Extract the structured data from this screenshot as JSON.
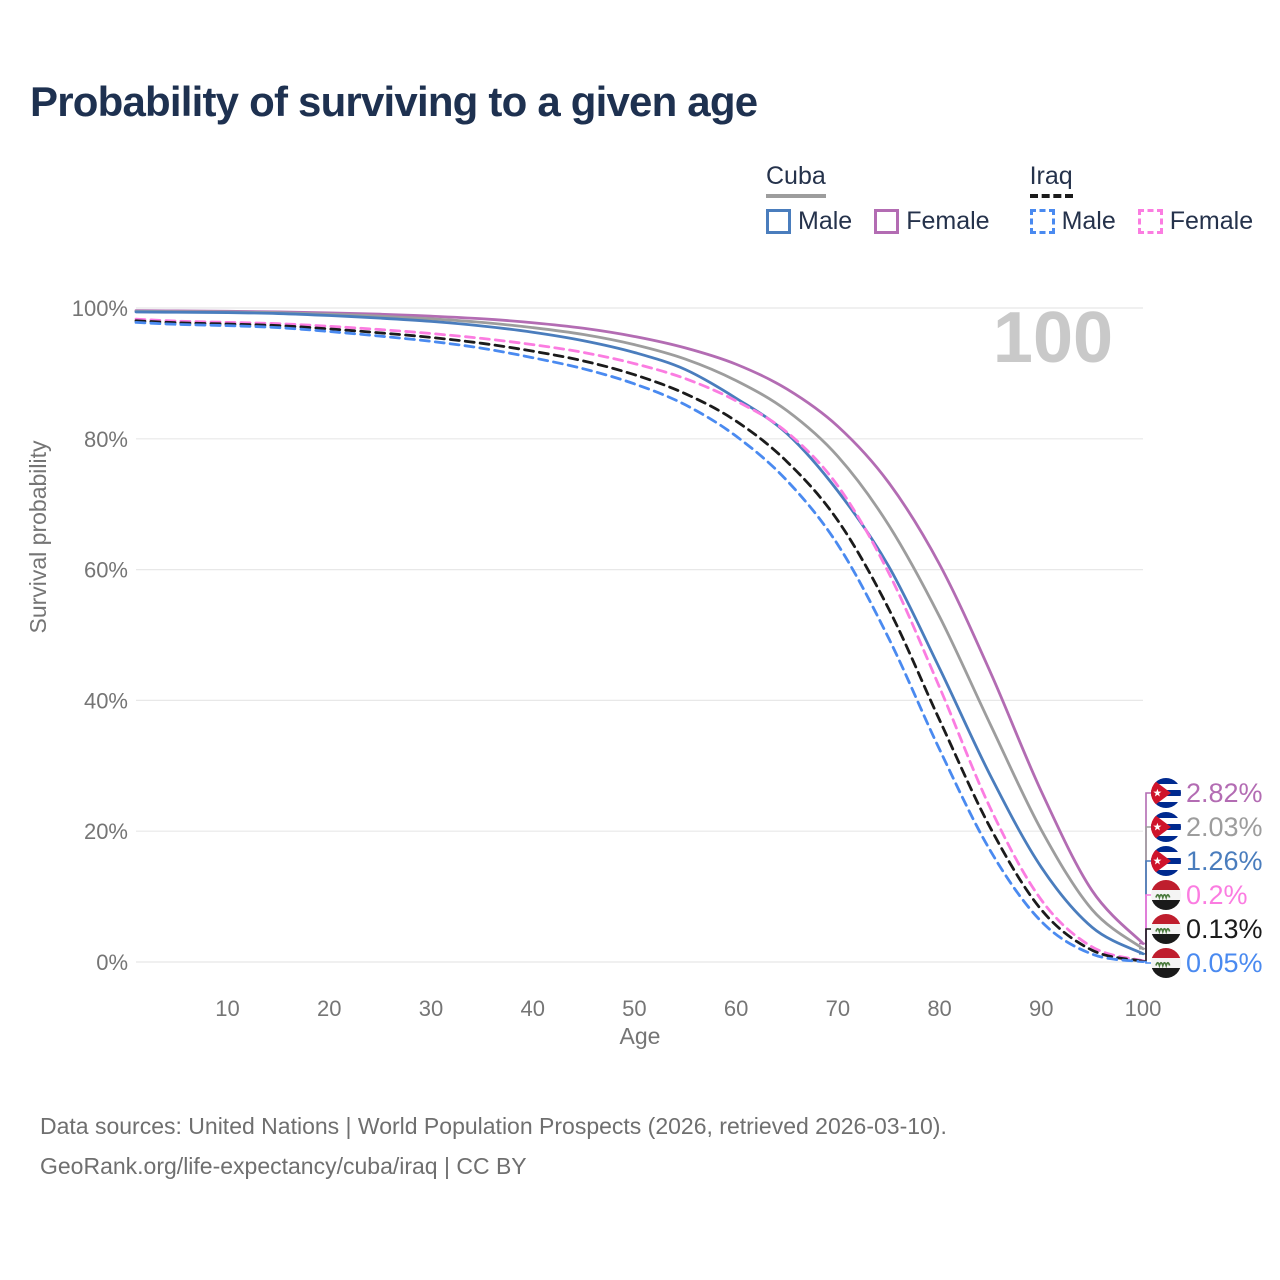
{
  "title": "Probability of surviving to a given age",
  "legend": {
    "cuba": {
      "label": "Cuba",
      "male": "Male",
      "female": "Female"
    },
    "iraq": {
      "label": "Iraq",
      "male": "Male",
      "female": "Female"
    }
  },
  "chart_data": {
    "type": "line",
    "title": "Probability of surviving to a given age",
    "xlabel": "Age",
    "ylabel": "Survival probability",
    "annotation": "100",
    "grid": "horizontal only",
    "legend_position": "top-right",
    "xlim": [
      1,
      100
    ],
    "ylim": [
      0,
      100
    ],
    "x_ticks": [
      10,
      20,
      30,
      40,
      50,
      60,
      70,
      80,
      90,
      100
    ],
    "x_tick_labels": [
      "10",
      "20",
      "30",
      "40",
      "50",
      "60",
      "70",
      "80",
      "90",
      "100"
    ],
    "y_ticks": [
      100,
      80,
      60,
      40,
      20,
      0
    ],
    "y_tick_labels": [
      "100%",
      "80%",
      "60%",
      "40%",
      "20%",
      "0%"
    ],
    "ages": [
      1,
      5,
      10,
      15,
      20,
      25,
      30,
      35,
      40,
      45,
      50,
      55,
      60,
      65,
      70,
      75,
      80,
      85,
      90,
      95,
      100
    ],
    "series": [
      {
        "key": "cuba-female",
        "name": "Cuba Female",
        "country": "Cuba",
        "sex": "Female",
        "flag": "cuba",
        "style": "solid",
        "color": "#b36cb3",
        "end_label": "2.82%",
        "values": [
          99.6,
          99.55,
          99.5,
          99.4,
          99.25,
          99.05,
          98.75,
          98.35,
          97.75,
          96.9,
          95.65,
          93.9,
          91.4,
          87.6,
          81.9,
          73.3,
          60.8,
          44.3,
          26.1,
          10.9,
          2.82
        ]
      },
      {
        "key": "cuba",
        "name": "Cuba",
        "country": "Cuba",
        "sex": "",
        "flag": "cuba",
        "style": "solid",
        "color": "#9d9d9d",
        "end_label": "2.03%",
        "values": [
          99.5,
          99.45,
          99.4,
          99.28,
          99.05,
          98.75,
          98.35,
          97.8,
          97.0,
          95.95,
          94.4,
          92.2,
          88.9,
          84.3,
          77.3,
          66.8,
          52.8,
          36.3,
          20.2,
          8.0,
          2.03
        ]
      },
      {
        "key": "cuba-male",
        "name": "Cuba Male",
        "country": "Cuba",
        "sex": "Male",
        "flag": "cuba",
        "style": "solid",
        "color": "#4a7dbd",
        "end_label": "1.26%",
        "values": [
          99.4,
          99.35,
          99.3,
          99.15,
          98.85,
          98.45,
          97.95,
          97.25,
          96.3,
          95.0,
          93.2,
          90.6,
          86.2,
          80.8,
          72.0,
          60.5,
          44.9,
          28.5,
          14.5,
          5.3,
          1.26
        ]
      },
      {
        "key": "iraq-female",
        "name": "Iraq Female",
        "country": "Iraq",
        "sex": "Female",
        "flag": "iraq",
        "style": "dashed",
        "color": "#fb7ce1",
        "end_label": "0.2%",
        "values": [
          98.3,
          98.0,
          97.8,
          97.6,
          97.2,
          96.7,
          96.1,
          95.35,
          94.4,
          93.2,
          91.5,
          89.2,
          85.8,
          81.0,
          72.8,
          59.5,
          42.0,
          23.5,
          9.5,
          2.3,
          0.2
        ]
      },
      {
        "key": "iraq",
        "name": "Iraq",
        "country": "Iraq",
        "sex": "",
        "flag": "iraq",
        "style": "dashed",
        "color": "#1b1b1b",
        "end_label": "0.13%",
        "values": [
          98.05,
          97.75,
          97.55,
          97.3,
          96.8,
          96.2,
          95.5,
          94.6,
          93.4,
          91.9,
          89.8,
          86.9,
          82.7,
          76.5,
          67.5,
          54.0,
          37.0,
          20.5,
          8.0,
          1.8,
          0.13
        ]
      },
      {
        "key": "iraq-male",
        "name": "Iraq Male",
        "country": "Iraq",
        "sex": "Male",
        "flag": "iraq",
        "style": "dashed",
        "color": "#4a8af0",
        "end_label": "0.05%",
        "values": [
          97.8,
          97.5,
          97.3,
          97.0,
          96.4,
          95.7,
          94.9,
          93.85,
          92.4,
          90.7,
          88.4,
          85.2,
          80.4,
          73.6,
          63.8,
          49.5,
          32.5,
          17.0,
          6.2,
          1.2,
          0.05
        ]
      }
    ]
  },
  "footer": {
    "line1": "Data sources: United Nations | World Population Prospects (2026, retrieved 2026-03-10).",
    "line2": "GeoRank.org/life-expectancy/cuba/iraq | CC BY"
  }
}
